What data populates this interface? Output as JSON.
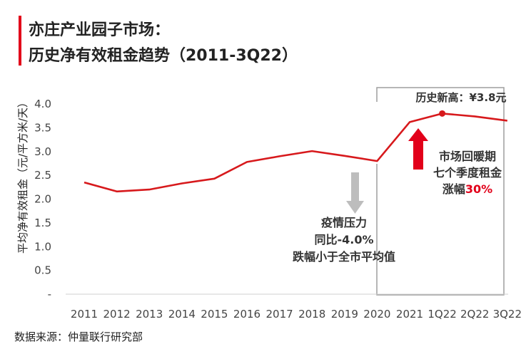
{
  "title": {
    "line1": "亦庄产业园子市场：",
    "line2": "历史净有效租金趋势（2011-3Q22）"
  },
  "source": "数据来源：仲量联行研究部",
  "colors": {
    "accent": "#e2001a",
    "line": "#d7191c",
    "gray_arrow": "#bdbdbd",
    "axis_text": "#444444",
    "highlight_box": "#9e9e9e"
  },
  "chart_data": {
    "type": "line",
    "title": "历史净有效租金趋势（2011-3Q22）",
    "xlabel": "",
    "ylabel": "平均净有效租金（元/平方米/天）",
    "categories": [
      "2011",
      "2012",
      "2013",
      "2014",
      "2015",
      "2016",
      "2017",
      "2018",
      "2019",
      "2020",
      "2021",
      "1Q22",
      "2Q22",
      "3Q22"
    ],
    "series": [
      {
        "values": [
          2.35,
          2.16,
          2.2,
          2.33,
          2.43,
          2.78,
          2.9,
          3.01,
          2.91,
          2.8,
          3.62,
          3.8,
          3.74,
          3.65
        ]
      }
    ],
    "ylim": [
      0,
      4.0
    ],
    "y_ticks": [
      "-",
      "0.5",
      "1.0",
      "1.5",
      "2.0",
      "2.5",
      "3.0",
      "3.5",
      "4.0"
    ],
    "grid": false,
    "annotations": {
      "peak_label": "历史新高：¥3.8元",
      "drop_lines": [
        "疫情压力",
        "同比-4.0%",
        "跌幅小于全市平均值"
      ],
      "rise_lines": [
        "市场回暖期",
        "七个季度租金"
      ],
      "rise_last_prefix": "涨幅",
      "rise_last_value": "30%"
    }
  }
}
